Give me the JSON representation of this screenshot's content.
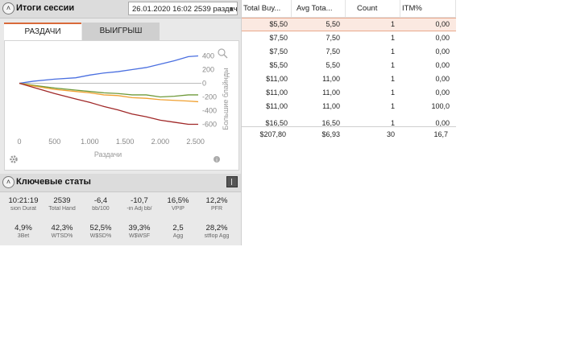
{
  "session_header": {
    "title": "Итоги сессии",
    "selected_session": "26.01.2020 16:02 2539 раздач)"
  },
  "tabs": [
    {
      "label": "РАЗДАЧИ"
    },
    {
      "label": "ВЫИГРЫШ"
    }
  ],
  "chart_data": {
    "type": "line",
    "xlabel": "Раздачи",
    "ylabel": "Большие блайнды",
    "xlim": [
      0,
      2539
    ],
    "ylim": [
      -700,
      500
    ],
    "x_ticks": [
      "0",
      "500",
      "1.000",
      "1.500",
      "2.000",
      "2.500"
    ],
    "y_ticks": [
      "400",
      "200",
      "0",
      "-200",
      "-400",
      "-600"
    ],
    "series": [
      {
        "color": "#4a6fe0",
        "x": [
          0,
          200,
          500,
          800,
          1000,
          1200,
          1400,
          1600,
          1800,
          2000,
          2200,
          2400,
          2539
        ],
        "y": [
          0,
          30,
          60,
          80,
          120,
          150,
          170,
          200,
          230,
          280,
          330,
          390,
          400
        ]
      },
      {
        "color": "#6f9a3a",
        "x": [
          0,
          200,
          500,
          800,
          1000,
          1200,
          1400,
          1600,
          1800,
          2000,
          2200,
          2400,
          2539
        ],
        "y": [
          0,
          -30,
          -70,
          -100,
          -120,
          -140,
          -150,
          -170,
          -170,
          -200,
          -190,
          -170,
          -170
        ]
      },
      {
        "color": "#f0a030",
        "x": [
          0,
          200,
          500,
          800,
          1000,
          1200,
          1400,
          1600,
          1800,
          2000,
          2200,
          2400,
          2539
        ],
        "y": [
          0,
          -40,
          -90,
          -120,
          -140,
          -170,
          -180,
          -210,
          -220,
          -240,
          -250,
          -260,
          -270
        ]
      },
      {
        "color": "#a02828",
        "x": [
          0,
          200,
          500,
          800,
          1000,
          1200,
          1400,
          1600,
          1800,
          2000,
          2200,
          2400,
          2539
        ],
        "y": [
          0,
          -60,
          -150,
          -230,
          -280,
          -340,
          -390,
          -450,
          -490,
          -540,
          -570,
          -600,
          -600
        ]
      }
    ]
  },
  "key_stats": {
    "title": "Ключевые статы",
    "items": [
      {
        "value": "10:21:19",
        "label": "sion Durat"
      },
      {
        "value": "2539",
        "label": "Total Hand"
      },
      {
        "value": "-6,4",
        "label": "bb/100"
      },
      {
        "value": "-10,7",
        "label": "-in Adj bb/"
      },
      {
        "value": "16,5%",
        "label": "VPIP"
      },
      {
        "value": "12,2%",
        "label": "PFR"
      },
      {
        "value": "4,9%",
        "label": "3Bet"
      },
      {
        "value": "42,3%",
        "label": "WTSD%"
      },
      {
        "value": "52,5%",
        "label": "W$SD%"
      },
      {
        "value": "39,3%",
        "label": "W$WSF"
      },
      {
        "value": "2,5",
        "label": "Agg"
      },
      {
        "value": "28,2%",
        "label": "stflop Agg"
      }
    ]
  },
  "table": {
    "columns": [
      "Total Buy...",
      "Avg Tota...",
      "Count",
      "ITM%"
    ],
    "rows": [
      [
        "$5,50",
        "5,50",
        "1",
        "0,00"
      ],
      [
        "$7,50",
        "7,50",
        "1",
        "0,00"
      ],
      [
        "$7,50",
        "7,50",
        "1",
        "0,00"
      ],
      [
        "$5,50",
        "5,50",
        "1",
        "0,00"
      ],
      [
        "$11,00",
        "11,00",
        "1",
        "0,00"
      ],
      [
        "$11,00",
        "11,00",
        "1",
        "0,00"
      ],
      [
        "$11,00",
        "11,00",
        "1",
        "100,0"
      ],
      [
        "$16,50",
        "16,50",
        "1",
        "0,00"
      ]
    ],
    "totals": [
      "$207,80",
      "$6,93",
      "30",
      "16,7"
    ]
  }
}
